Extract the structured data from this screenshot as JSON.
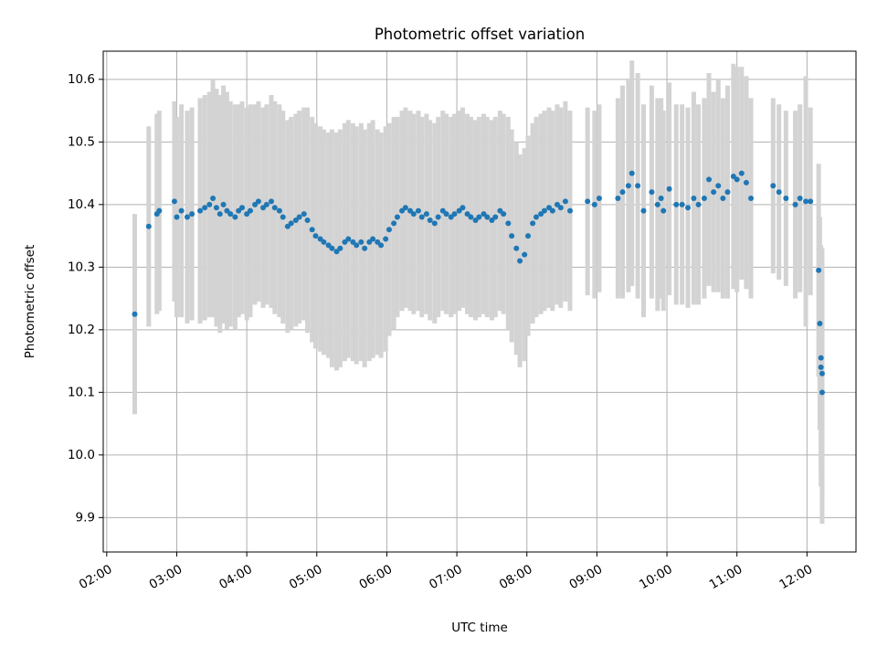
{
  "chart_data": {
    "type": "scatter",
    "title": "Photometric offset variation",
    "xlabel": "UTC time",
    "ylabel": "Photometric offset",
    "grid": true,
    "xlim": [
      "01:57",
      "12:42"
    ],
    "ylim": [
      9.845,
      10.645
    ],
    "x_ticks": [
      "02:00",
      "03:00",
      "04:00",
      "05:00",
      "06:00",
      "07:00",
      "08:00",
      "09:00",
      "10:00",
      "11:00",
      "12:00"
    ],
    "y_ticks": [
      "9.9",
      "10.0",
      "10.1",
      "10.2",
      "10.3",
      "10.4",
      "10.5",
      "10.6"
    ],
    "colors": {
      "points": "#1f77b4",
      "error_bars": "#d3d3d3",
      "grid": "#b0b0b0"
    },
    "series": [
      {
        "x": [
          "02:24",
          "02:36",
          "02:43",
          "02:45",
          "02:58",
          "03:00",
          "03:04",
          "03:09",
          "03:13",
          "03:20",
          "03:24",
          "03:28",
          "03:31",
          "03:34",
          "03:37",
          "03:40",
          "03:43",
          "03:46",
          "03:50",
          "03:53",
          "03:56",
          "04:00",
          "04:03",
          "04:07",
          "04:10",
          "04:14",
          "04:17",
          "04:21",
          "04:24",
          "04:28",
          "04:31",
          "04:35",
          "04:38",
          "04:42",
          "04:45",
          "04:49",
          "04:52",
          "04:56",
          "04:59",
          "05:03",
          "05:06",
          "05:10",
          "05:13",
          "05:17",
          "05:20",
          "05:24",
          "05:27",
          "05:31",
          "05:34",
          "05:38",
          "05:41",
          "05:45",
          "05:48",
          "05:52",
          "05:55",
          "05:59",
          "06:02",
          "06:06",
          "06:09",
          "06:13",
          "06:16",
          "06:20",
          "06:23",
          "06:27",
          "06:30",
          "06:34",
          "06:37",
          "06:41",
          "06:44",
          "06:48",
          "06:51",
          "06:55",
          "06:58",
          "07:02",
          "07:05",
          "07:09",
          "07:12",
          "07:16",
          "07:19",
          "07:23",
          "07:26",
          "07:30",
          "07:33",
          "07:37",
          "07:40",
          "07:44",
          "07:47",
          "07:51",
          "07:54",
          "07:58",
          "08:01",
          "08:05",
          "08:08",
          "08:12",
          "08:15",
          "08:19",
          "08:22",
          "08:26",
          "08:29",
          "08:33",
          "08:37",
          "08:52",
          "08:58",
          "09:02",
          "09:18",
          "09:22",
          "09:27",
          "09:30",
          "09:35",
          "09:40",
          "09:47",
          "09:52",
          "09:55",
          "09:57",
          "10:02",
          "10:08",
          "10:13",
          "10:18",
          "10:23",
          "10:27",
          "10:32",
          "10:36",
          "10:40",
          "10:44",
          "10:48",
          "10:52",
          "10:57",
          "11:00",
          "11:04",
          "11:08",
          "11:12",
          "11:31",
          "11:36",
          "11:42",
          "11:50",
          "11:54",
          "11:59",
          "12:03",
          "12:10",
          "12:11",
          "12:12",
          "12:12",
          "12:13",
          "12:13"
        ],
        "y": [
          10.225,
          10.365,
          10.385,
          10.39,
          10.405,
          10.38,
          10.39,
          10.38,
          10.385,
          10.39,
          10.395,
          10.4,
          10.41,
          10.395,
          10.385,
          10.4,
          10.39,
          10.385,
          10.38,
          10.39,
          10.395,
          10.385,
          10.39,
          10.4,
          10.405,
          10.395,
          10.4,
          10.405,
          10.395,
          10.39,
          10.38,
          10.365,
          10.37,
          10.375,
          10.38,
          10.385,
          10.375,
          10.36,
          10.35,
          10.345,
          10.34,
          10.335,
          10.33,
          10.325,
          10.33,
          10.34,
          10.345,
          10.34,
          10.335,
          10.34,
          10.33,
          10.34,
          10.345,
          10.34,
          10.335,
          10.345,
          10.36,
          10.37,
          10.38,
          10.39,
          10.395,
          10.39,
          10.385,
          10.39,
          10.38,
          10.385,
          10.375,
          10.37,
          10.38,
          10.39,
          10.385,
          10.38,
          10.385,
          10.39,
          10.395,
          10.385,
          10.38,
          10.375,
          10.38,
          10.385,
          10.38,
          10.375,
          10.38,
          10.39,
          10.385,
          10.37,
          10.35,
          10.33,
          10.31,
          10.32,
          10.35,
          10.37,
          10.38,
          10.385,
          10.39,
          10.395,
          10.39,
          10.4,
          10.395,
          10.405,
          10.39,
          10.405,
          10.4,
          10.41,
          10.41,
          10.42,
          10.43,
          10.45,
          10.43,
          10.39,
          10.42,
          10.4,
          10.41,
          10.39,
          10.425,
          10.4,
          10.4,
          10.395,
          10.41,
          10.4,
          10.41,
          10.44,
          10.42,
          10.43,
          10.41,
          10.42,
          10.445,
          10.44,
          10.45,
          10.435,
          10.41,
          10.43,
          10.42,
          10.41,
          10.4,
          10.41,
          10.405,
          10.405,
          10.295,
          10.21,
          10.155,
          10.14,
          10.13,
          10.1
        ],
        "error": [
          0.16,
          0.16,
          0.16,
          0.16,
          0.16,
          0.16,
          0.17,
          0.17,
          0.17,
          0.18,
          0.18,
          0.18,
          0.19,
          0.19,
          0.19,
          0.19,
          0.19,
          0.18,
          0.18,
          0.17,
          0.17,
          0.17,
          0.17,
          0.16,
          0.16,
          0.16,
          0.16,
          0.17,
          0.17,
          0.17,
          0.17,
          0.17,
          0.17,
          0.17,
          0.17,
          0.17,
          0.18,
          0.18,
          0.18,
          0.18,
          0.18,
          0.18,
          0.19,
          0.19,
          0.19,
          0.19,
          0.19,
          0.19,
          0.19,
          0.19,
          0.19,
          0.19,
          0.19,
          0.18,
          0.18,
          0.18,
          0.17,
          0.17,
          0.16,
          0.16,
          0.16,
          0.16,
          0.16,
          0.16,
          0.16,
          0.16,
          0.16,
          0.16,
          0.16,
          0.16,
          0.16,
          0.16,
          0.16,
          0.16,
          0.16,
          0.16,
          0.16,
          0.16,
          0.16,
          0.16,
          0.16,
          0.16,
          0.16,
          0.16,
          0.16,
          0.17,
          0.17,
          0.17,
          0.17,
          0.17,
          0.16,
          0.16,
          0.16,
          0.16,
          0.16,
          0.16,
          0.16,
          0.16,
          0.16,
          0.16,
          0.16,
          0.15,
          0.15,
          0.15,
          0.16,
          0.17,
          0.17,
          0.18,
          0.18,
          0.17,
          0.17,
          0.17,
          0.16,
          0.16,
          0.17,
          0.16,
          0.16,
          0.16,
          0.17,
          0.16,
          0.16,
          0.17,
          0.16,
          0.17,
          0.16,
          0.17,
          0.18,
          0.18,
          0.17,
          0.17,
          0.16,
          0.14,
          0.14,
          0.14,
          0.15,
          0.15,
          0.2,
          0.15,
          0.17,
          0.17,
          0.18,
          0.19,
          0.2,
          0.21
        ]
      }
    ]
  }
}
